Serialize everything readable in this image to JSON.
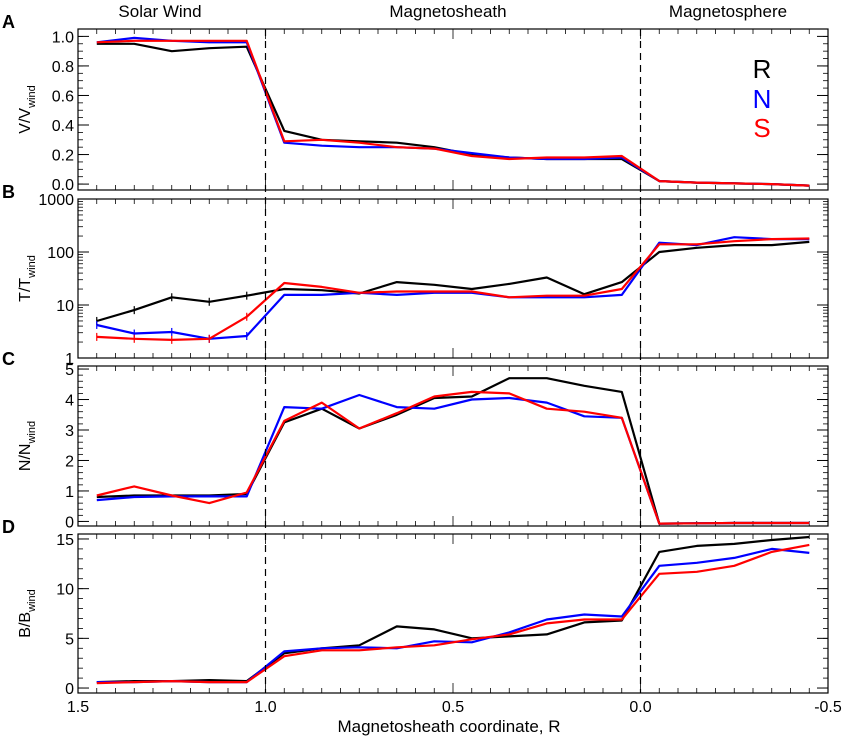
{
  "chart_data": {
    "type": "line",
    "region_labels": [
      "Solar Wind",
      "Magnetosheath",
      "Magnetosphere"
    ],
    "xlabel": "Magnetosheath coordinate, R",
    "xlim": [
      1.5,
      -0.5
    ],
    "x_ticks": [
      {
        "value": 1.5,
        "label": "1.5"
      },
      {
        "value": 1.0,
        "label": "1.0"
      },
      {
        "value": 0.5,
        "label": "0.5"
      },
      {
        "value": 0.0,
        "label": "0.0"
      },
      {
        "value": -0.5,
        "label": "-0.5"
      }
    ],
    "boundaries": [
      1.0,
      0.0
    ],
    "legend": [
      {
        "name": "R",
        "color": "#000000"
      },
      {
        "name": "N",
        "color": "#0000ff"
      },
      {
        "name": "S",
        "color": "#ff0000"
      }
    ],
    "x": [
      1.45,
      1.35,
      1.25,
      1.15,
      1.05,
      0.95,
      0.85,
      0.75,
      0.65,
      0.55,
      0.45,
      0.35,
      0.25,
      0.15,
      0.05,
      -0.05,
      -0.15,
      -0.25,
      -0.35,
      -0.45
    ],
    "panels": [
      {
        "letter": "A",
        "ylabel": "V/V",
        "ylabel_sub": "wind",
        "scale": "linear",
        "ylim": [
          -0.04,
          1.05
        ],
        "y_ticks": [
          {
            "value": 0.0,
            "label": "0.0"
          },
          {
            "value": 0.2,
            "label": "0.2"
          },
          {
            "value": 0.4,
            "label": "0.4"
          },
          {
            "value": 0.6,
            "label": "0.6"
          },
          {
            "value": 0.8,
            "label": "0.8"
          },
          {
            "value": 1.0,
            "label": "1.0"
          }
        ],
        "series": [
          {
            "name": "R",
            "color": "#000000",
            "values": [
              0.95,
              0.95,
              0.9,
              0.92,
              0.93,
              0.36,
              0.3,
              0.29,
              0.28,
              0.25,
              0.2,
              0.18,
              0.17,
              0.17,
              0.17,
              0.02,
              0.01,
              0.005,
              0.0,
              -0.01
            ]
          },
          {
            "name": "N",
            "color": "#0000ff",
            "values": [
              0.96,
              0.99,
              0.97,
              0.96,
              0.96,
              0.28,
              0.26,
              0.25,
              0.25,
              0.24,
              0.21,
              0.18,
              0.17,
              0.17,
              0.18,
              0.02,
              0.01,
              0.005,
              0.0,
              -0.01
            ]
          },
          {
            "name": "S",
            "color": "#ff0000",
            "values": [
              0.96,
              0.97,
              0.97,
              0.97,
              0.97,
              0.29,
              0.3,
              0.28,
              0.25,
              0.24,
              0.19,
              0.17,
              0.18,
              0.18,
              0.19,
              0.02,
              0.01,
              0.005,
              0.0,
              -0.01
            ]
          }
        ]
      },
      {
        "letter": "B",
        "ylabel": "T/T",
        "ylabel_sub": "wind",
        "scale": "log",
        "ylim": [
          1,
          1000
        ],
        "y_ticks": [
          {
            "value": 1,
            "label": "1"
          },
          {
            "value": 10,
            "label": "10"
          },
          {
            "value": 100,
            "label": "100"
          },
          {
            "value": 1000,
            "label": "1000"
          }
        ],
        "series": [
          {
            "name": "R",
            "color": "#000000",
            "values": [
              5,
              8,
              14,
              11.5,
              15,
              20,
              19,
              16.5,
              27,
              24,
              20,
              25,
              33,
              16,
              27,
              100,
              120,
              135,
              135,
              155
            ]
          },
          {
            "name": "N",
            "color": "#0000ff",
            "values": [
              4.2,
              2.9,
              3.1,
              2.3,
              2.6,
              15.5,
              15.5,
              17,
              15.5,
              17,
              17,
              14,
              14,
              14,
              15.5,
              150,
              135,
              190,
              175,
              175
            ]
          },
          {
            "name": "S",
            "color": "#ff0000",
            "values": [
              2.5,
              2.3,
              2.2,
              2.3,
              6,
              26,
              22,
              17,
              18,
              18,
              18,
              14,
              15,
              15,
              20,
              140,
              140,
              160,
              175,
              180
            ]
          }
        ]
      },
      {
        "letter": "C",
        "ylabel": "N/N",
        "ylabel_sub": "wind",
        "scale": "linear",
        "ylim": [
          -0.15,
          5.1
        ],
        "y_ticks": [
          {
            "value": 0,
            "label": "0"
          },
          {
            "value": 1,
            "label": "1"
          },
          {
            "value": 2,
            "label": "2"
          },
          {
            "value": 3,
            "label": "3"
          },
          {
            "value": 4,
            "label": "4"
          },
          {
            "value": 5,
            "label": "5"
          }
        ],
        "series": [
          {
            "name": "R",
            "color": "#000000",
            "values": [
              0.8,
              0.85,
              0.85,
              0.85,
              0.9,
              3.25,
              3.7,
              3.05,
              3.5,
              4.05,
              4.1,
              4.7,
              4.7,
              4.45,
              4.25,
              -0.07,
              -0.06,
              -0.05,
              -0.05,
              -0.05
            ]
          },
          {
            "name": "N",
            "color": "#0000ff",
            "values": [
              0.7,
              0.8,
              0.82,
              0.82,
              0.82,
              3.75,
              3.7,
              4.15,
              3.75,
              3.7,
              4.0,
              4.05,
              3.9,
              3.45,
              3.4,
              -0.07,
              -0.06,
              -0.05,
              -0.05,
              -0.05
            ]
          },
          {
            "name": "S",
            "color": "#ff0000",
            "values": [
              0.85,
              1.15,
              0.85,
              0.6,
              0.95,
              3.3,
              3.9,
              3.05,
              3.55,
              4.1,
              4.25,
              4.2,
              3.7,
              3.6,
              3.4,
              -0.07,
              -0.06,
              -0.05,
              -0.05,
              -0.05
            ]
          }
        ]
      },
      {
        "letter": "D",
        "ylabel": "B/B",
        "ylabel_sub": "wind",
        "scale": "linear",
        "ylim": [
          -0.5,
          15.5
        ],
        "y_ticks": [
          {
            "value": 0,
            "label": "0"
          },
          {
            "value": 5,
            "label": "5"
          },
          {
            "value": 10,
            "label": "10"
          },
          {
            "value": 15,
            "label": "15"
          }
        ],
        "series": [
          {
            "name": "R",
            "color": "#000000",
            "values": [
              0.6,
              0.7,
              0.7,
              0.8,
              0.7,
              3.5,
              4.0,
              4.3,
              6.2,
              5.9,
              5.0,
              5.2,
              5.4,
              6.6,
              6.8,
              13.7,
              14.3,
              14.5,
              14.9,
              15.2
            ]
          },
          {
            "name": "N",
            "color": "#0000ff",
            "values": [
              0.6,
              0.6,
              0.7,
              0.6,
              0.6,
              3.7,
              4.0,
              4.1,
              4.0,
              4.7,
              4.6,
              5.6,
              6.9,
              7.4,
              7.2,
              12.3,
              12.6,
              13.1,
              14.0,
              13.6
            ]
          },
          {
            "name": "S",
            "color": "#ff0000",
            "values": [
              0.5,
              0.6,
              0.7,
              0.6,
              0.6,
              3.2,
              3.8,
              3.8,
              4.1,
              4.3,
              4.9,
              5.4,
              6.5,
              6.9,
              6.9,
              11.5,
              11.7,
              12.3,
              13.7,
              14.4
            ]
          }
        ]
      }
    ]
  }
}
